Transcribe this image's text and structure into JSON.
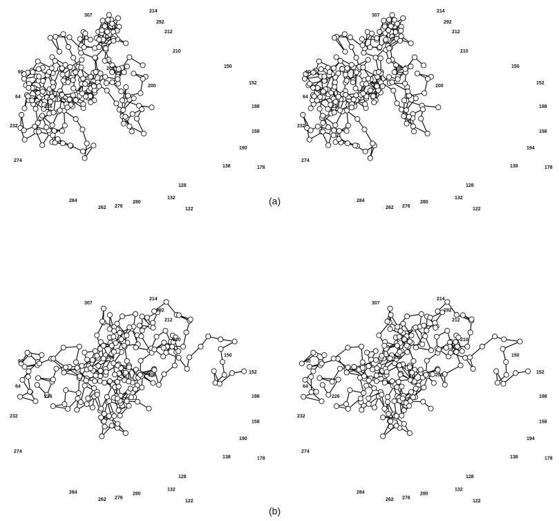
{
  "figure": {
    "panels": [
      {
        "caption": "(a)",
        "views": [
          {
            "labels": [
              "307",
              "214",
              "292",
              "212",
              "150",
              "152",
              "198",
              "158",
              "190",
              "178",
              "138",
              "122",
              "128",
              "132",
              "280",
              "276",
              "262",
              "284",
              "274",
              "232",
              "64",
              "60",
              "210",
              "208",
              "200",
              "226"
            ]
          },
          {
            "labels": [
              "307",
              "214",
              "292",
              "212",
              "150",
              "152",
              "198",
              "158",
              "194",
              "178",
              "138",
              "122",
              "128",
              "132",
              "280",
              "276",
              "262",
              "284",
              "274",
              "232",
              "64",
              "60",
              "210",
              "208",
              "200",
              "226"
            ]
          }
        ]
      },
      {
        "caption": "(b)",
        "views": [
          {
            "labels": [
              "307",
              "214",
              "292",
              "212",
              "150",
              "152",
              "198",
              "158",
              "190",
              "178",
              "138",
              "122",
              "128",
              "132",
              "280",
              "276",
              "262",
              "284",
              "274",
              "232",
              "64",
              "60",
              "210",
              "208",
              "200",
              "226"
            ]
          },
          {
            "labels": [
              "307",
              "214",
              "292",
              "212",
              "150",
              "152",
              "198",
              "158",
              "194",
              "178",
              "138",
              "122",
              "128",
              "132",
              "280",
              "276",
              "262",
              "284",
              "274",
              "232",
              "64",
              "60",
              "210",
              "208",
              "200",
              "226"
            ]
          }
        ]
      }
    ]
  }
}
